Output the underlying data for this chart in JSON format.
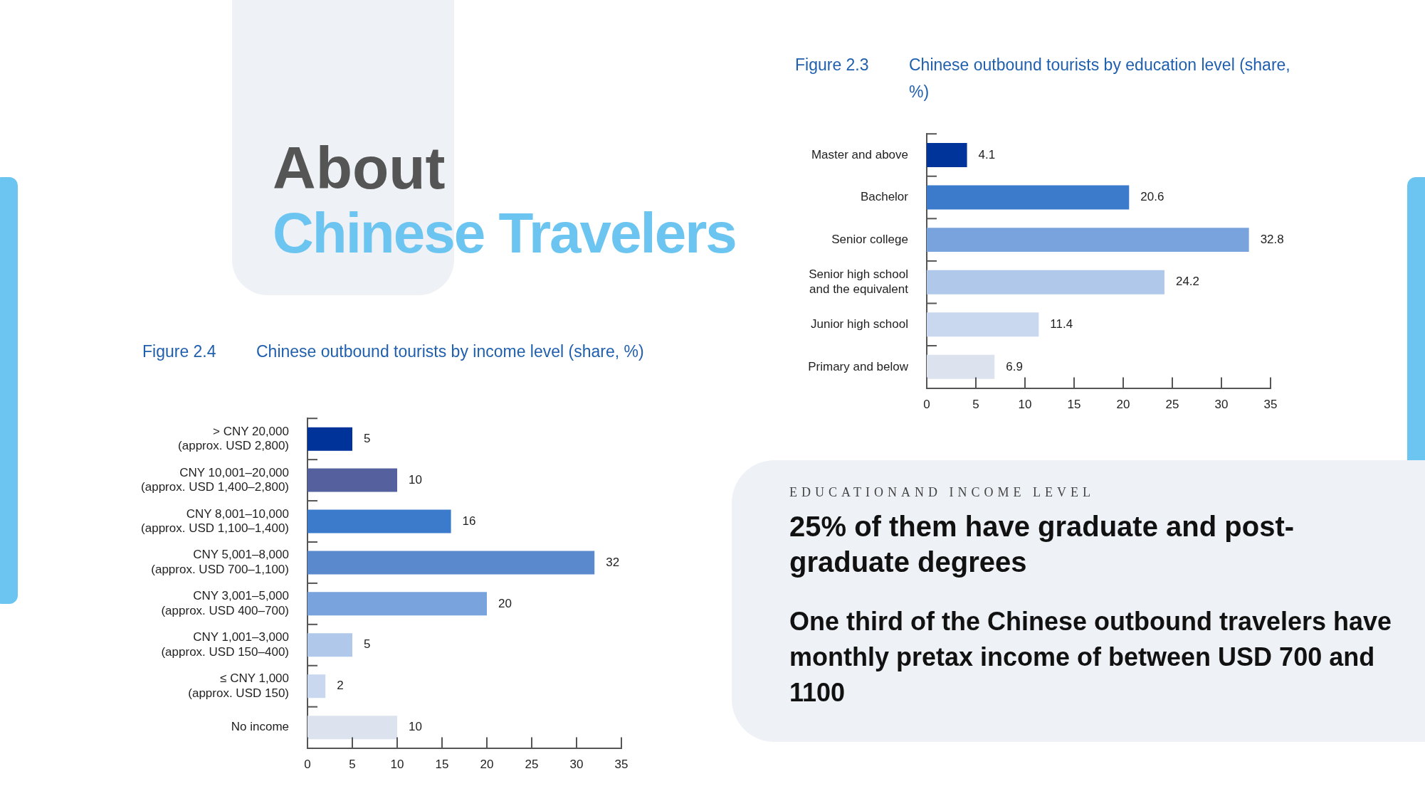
{
  "chart_data": [
    {
      "type": "bar",
      "orientation": "horizontal",
      "title": "Figure 2.3",
      "subtitle": "Chinese outbound tourists by education level (share, %)",
      "categories": [
        "Master and above",
        "Bachelor",
        "Senior college",
        "Senior high school\nand the equivalent",
        "Junior high school",
        "Primary and below"
      ],
      "values": [
        4.1,
        20.6,
        32.8,
        24.2,
        11.4,
        6.9
      ],
      "colors": [
        "#00349a",
        "#3c7bcb",
        "#78a3dc",
        "#b0c8e9",
        "#c9d8ef",
        "#dde3ee"
      ],
      "xlim": [
        0,
        35
      ],
      "xticks": [
        0,
        5,
        10,
        15,
        20,
        25,
        30,
        35
      ],
      "data_labels": true
    },
    {
      "type": "bar",
      "orientation": "horizontal",
      "title": "Figure 2.4",
      "subtitle": "Chinese outbound tourists by income level (share, %)",
      "categories": [
        "> CNY 20,000\n(approx. USD 2,800)",
        "CNY 10,001–20,000\n(approx. USD 1,400–2,800)",
        "CNY 8,001–10,000\n(approx. USD 1,100–1,400)",
        "CNY 5,001–8,000\n(approx. USD 700–1,100)",
        "CNY 3,001–5,000\n(approx. USD 400–700)",
        "CNY 1,001–3,000\n(approx. USD 150–400)",
        "≤ CNY 1,000\n(approx. USD 150)",
        "No income"
      ],
      "values": [
        5,
        10,
        16,
        32,
        20,
        5,
        2,
        10
      ],
      "colors": [
        "#00339a",
        "#55609f",
        "#3c7bcb",
        "#5a89cd",
        "#78a3dc",
        "#b0c8e9",
        "#c9d8ef",
        "#dde3ee"
      ],
      "xlim": [
        0,
        35
      ],
      "xticks": [
        0,
        5,
        10,
        15,
        20,
        25,
        30,
        35
      ],
      "data_labels": true
    },
    {
      "type": "other",
      "title": "About",
      "subtitle": "Chinese Travelers"
    },
    {
      "type": "other",
      "title": "EDUCATIONAND INCOME LEVEL",
      "subtitle": "25% of them have graduate and post-graduate degrees",
      "annotations": [
        "One third of the Chinese outbound travelers have monthly pretax income of between USD 700 and 1100"
      ]
    }
  ]
}
